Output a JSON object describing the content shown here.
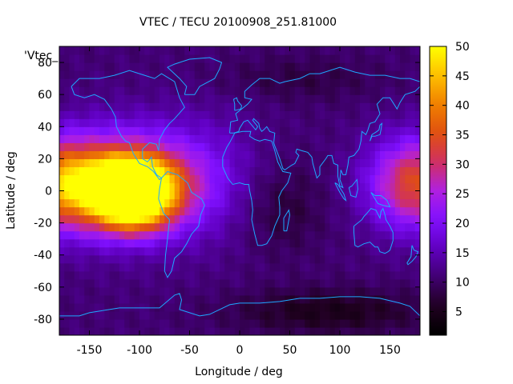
{
  "chart_data": {
    "type": "heatmap",
    "title": "VTEC / TECU 20100908_251.81000",
    "xlabel": "Longitude / deg",
    "ylabel": "Latitude / deg",
    "series_label": "'Vtec_",
    "xlim": [
      -180,
      180
    ],
    "ylim": [
      -90,
      90
    ],
    "x_ticks": [
      -150,
      -100,
      -50,
      0,
      50,
      100,
      150
    ],
    "y_ticks": [
      -80,
      -60,
      -40,
      -20,
      0,
      20,
      40,
      60,
      80
    ],
    "colorbar": {
      "range": [
        1,
        50
      ],
      "ticks": [
        5,
        10,
        15,
        20,
        25,
        30,
        35,
        40,
        45,
        50
      ],
      "palette": [
        "#000000",
        "#200020",
        "#400070",
        "#6000c0",
        "#8010ff",
        "#b020e0",
        "#d03060",
        "#e05010",
        "#f08000",
        "#ffc000",
        "#ffff00"
      ]
    },
    "grid_step_deg": [
      5,
      5
    ],
    "features": [
      {
        "lon": -110,
        "lat": 2,
        "value": 48,
        "sx": 28,
        "sy": 12
      },
      {
        "lon": -120,
        "lat": 5,
        "value": 28,
        "sx": 55,
        "sy": 22
      },
      {
        "lon": -105,
        "lat": -15,
        "value": 12,
        "sx": 25,
        "sy": 10
      },
      {
        "lon": 180,
        "lat": 5,
        "value": 24,
        "sx": 35,
        "sy": 20
      },
      {
        "lon": -180,
        "lat": 5,
        "value": 18,
        "sx": 25,
        "sy": 18
      },
      {
        "lon": -30,
        "lat": 10,
        "value": 4,
        "sx": 40,
        "sy": 30
      },
      {
        "lon": 40,
        "lat": -10,
        "value": -4,
        "sx": 30,
        "sy": 20
      },
      {
        "lon": 90,
        "lat": -75,
        "value": -6,
        "sx": 70,
        "sy": 10
      },
      {
        "lon": 60,
        "lat": 70,
        "value": -3,
        "sx": 60,
        "sy": 10
      }
    ],
    "base_value": 11,
    "landmass_outlines": {
      "north_america": [
        [
          -168,
          65
        ],
        [
          -160,
          70
        ],
        [
          -140,
          70
        ],
        [
          -125,
          72
        ],
        [
          -110,
          75
        ],
        [
          -95,
          72
        ],
        [
          -85,
          70
        ],
        [
          -78,
          73
        ],
        [
          -65,
          68
        ],
        [
          -60,
          58
        ],
        [
          -55,
          52
        ],
        [
          -65,
          45
        ],
        [
          -70,
          42
        ],
        [
          -75,
          38
        ],
        [
          -80,
          32
        ],
        [
          -81,
          25
        ],
        [
          -83,
          29
        ],
        [
          -90,
          30
        ],
        [
          -97,
          26
        ],
        [
          -97,
          20
        ],
        [
          -92,
          18
        ],
        [
          -88,
          21
        ],
        [
          -87,
          15
        ],
        [
          -83,
          10
        ],
        [
          -78,
          8
        ],
        [
          -80,
          7
        ],
        [
          -86,
          12
        ],
        [
          -92,
          15
        ],
        [
          -100,
          17
        ],
        [
          -106,
          23
        ],
        [
          -110,
          30
        ],
        [
          -114,
          31
        ],
        [
          -118,
          34
        ],
        [
          -123,
          40
        ],
        [
          -124,
          46
        ],
        [
          -128,
          51
        ],
        [
          -135,
          57
        ],
        [
          -145,
          60
        ],
        [
          -155,
          58
        ],
        [
          -165,
          60
        ],
        [
          -168,
          65
        ]
      ],
      "south_america": [
        [
          -78,
          8
        ],
        [
          -72,
          12
        ],
        [
          -62,
          10
        ],
        [
          -52,
          5
        ],
        [
          -48,
          -1
        ],
        [
          -38,
          -5
        ],
        [
          -35,
          -9
        ],
        [
          -39,
          -15
        ],
        [
          -41,
          -22
        ],
        [
          -48,
          -27
        ],
        [
          -53,
          -33
        ],
        [
          -58,
          -38
        ],
        [
          -65,
          -42
        ],
        [
          -68,
          -50
        ],
        [
          -72,
          -54
        ],
        [
          -75,
          -50
        ],
        [
          -74,
          -40
        ],
        [
          -72,
          -30
        ],
        [
          -70,
          -18
        ],
        [
          -76,
          -14
        ],
        [
          -81,
          -5
        ],
        [
          -80,
          1
        ],
        [
          -78,
          8
        ]
      ],
      "greenland": [
        [
          -55,
          60
        ],
        [
          -45,
          60
        ],
        [
          -40,
          65
        ],
        [
          -25,
          70
        ],
        [
          -20,
          76
        ],
        [
          -18,
          80
        ],
        [
          -30,
          83
        ],
        [
          -50,
          82
        ],
        [
          -65,
          79
        ],
        [
          -72,
          77
        ],
        [
          -60,
          70
        ],
        [
          -53,
          65
        ],
        [
          -55,
          60
        ]
      ],
      "europe_asia": [
        [
          -10,
          36
        ],
        [
          -9,
          43
        ],
        [
          -2,
          44
        ],
        [
          -4,
          48
        ],
        [
          2,
          51
        ],
        [
          8,
          54
        ],
        [
          12,
          57
        ],
        [
          5,
          58
        ],
        [
          5,
          62
        ],
        [
          12,
          66
        ],
        [
          20,
          70
        ],
        [
          30,
          70
        ],
        [
          40,
          67
        ],
        [
          45,
          68
        ],
        [
          60,
          70
        ],
        [
          70,
          73
        ],
        [
          80,
          73
        ],
        [
          100,
          77
        ],
        [
          115,
          74
        ],
        [
          130,
          72
        ],
        [
          145,
          72
        ],
        [
          160,
          70
        ],
        [
          170,
          70
        ],
        [
          180,
          68
        ],
        [
          180,
          65
        ],
        [
          175,
          62
        ],
        [
          165,
          60
        ],
        [
          160,
          55
        ],
        [
          157,
          51
        ],
        [
          150,
          58
        ],
        [
          143,
          58
        ],
        [
          137,
          54
        ],
        [
          140,
          48
        ],
        [
          135,
          43
        ],
        [
          130,
          42
        ],
        [
          128,
          38
        ],
        [
          126,
          35
        ],
        [
          122,
          37
        ],
        [
          121,
          31
        ],
        [
          119,
          26
        ],
        [
          114,
          22
        ],
        [
          109,
          21
        ],
        [
          108,
          16
        ],
        [
          106,
          10
        ],
        [
          103,
          10
        ],
        [
          101,
          13
        ],
        [
          100,
          7
        ],
        [
          103,
          2
        ],
        [
          100,
          3
        ],
        [
          98,
          9
        ],
        [
          98,
          16
        ],
        [
          94,
          17
        ],
        [
          92,
          22
        ],
        [
          88,
          22
        ],
        [
          86,
          20
        ],
        [
          80,
          15
        ],
        [
          80,
          10
        ],
        [
          77,
          8
        ],
        [
          73,
          17
        ],
        [
          72,
          21
        ],
        [
          68,
          24
        ],
        [
          62,
          25
        ],
        [
          57,
          26
        ],
        [
          56,
          24
        ],
        [
          59,
          22
        ],
        [
          55,
          17
        ],
        [
          52,
          16
        ],
        [
          45,
          13
        ],
        [
          43,
          14
        ],
        [
          40,
          20
        ],
        [
          35,
          28
        ],
        [
          34,
          30
        ],
        [
          35,
          36
        ],
        [
          30,
          37
        ],
        [
          27,
          40
        ],
        [
          24,
          38
        ],
        [
          22,
          37
        ],
        [
          20,
          39
        ],
        [
          19,
          42
        ],
        [
          14,
          45
        ],
        [
          13,
          44
        ],
        [
          18,
          40
        ],
        [
          16,
          38
        ],
        [
          12,
          41
        ],
        [
          8,
          44
        ],
        [
          4,
          43
        ],
        [
          0,
          39
        ],
        [
          -1,
          37
        ],
        [
          -6,
          36
        ],
        [
          -10,
          36
        ]
      ],
      "africa": [
        [
          -17,
          21
        ],
        [
          -17,
          15
        ],
        [
          -12,
          8
        ],
        [
          -7,
          4
        ],
        [
          0,
          5
        ],
        [
          5,
          4
        ],
        [
          9,
          4
        ],
        [
          10,
          0
        ],
        [
          12,
          -6
        ],
        [
          13,
          -12
        ],
        [
          12,
          -18
        ],
        [
          15,
          -27
        ],
        [
          18,
          -34
        ],
        [
          22,
          -34
        ],
        [
          27,
          -33
        ],
        [
          32,
          -28
        ],
        [
          35,
          -22
        ],
        [
          40,
          -15
        ],
        [
          40,
          -10
        ],
        [
          39,
          -4
        ],
        [
          42,
          0
        ],
        [
          48,
          5
        ],
        [
          51,
          11
        ],
        [
          43,
          12
        ],
        [
          38,
          18
        ],
        [
          35,
          25
        ],
        [
          32,
          31
        ],
        [
          25,
          32
        ],
        [
          20,
          31
        ],
        [
          15,
          32
        ],
        [
          10,
          34
        ],
        [
          11,
          37
        ],
        [
          3,
          37
        ],
        [
          -5,
          36
        ],
        [
          -10,
          30
        ],
        [
          -13,
          27
        ],
        [
          -17,
          21
        ]
      ],
      "australia": [
        [
          114,
          -22
        ],
        [
          114,
          -26
        ],
        [
          115,
          -34
        ],
        [
          118,
          -35
        ],
        [
          124,
          -33
        ],
        [
          130,
          -32
        ],
        [
          135,
          -35
        ],
        [
          138,
          -35
        ],
        [
          140,
          -38
        ],
        [
          145,
          -39
        ],
        [
          148,
          -38
        ],
        [
          150,
          -37
        ],
        [
          153,
          -31
        ],
        [
          153,
          -26
        ],
        [
          150,
          -22
        ],
        [
          146,
          -18
        ],
        [
          145,
          -15
        ],
        [
          143,
          -11
        ],
        [
          141,
          -13
        ],
        [
          140,
          -17
        ],
        [
          136,
          -12
        ],
        [
          131,
          -11
        ],
        [
          127,
          -14
        ],
        [
          124,
          -16
        ],
        [
          122,
          -18
        ],
        [
          114,
          -22
        ]
      ],
      "antarctica": [
        [
          -180,
          -78
        ],
        [
          -160,
          -78
        ],
        [
          -150,
          -76
        ],
        [
          -140,
          -75
        ],
        [
          -120,
          -73
        ],
        [
          -100,
          -73
        ],
        [
          -80,
          -73
        ],
        [
          -65,
          -65
        ],
        [
          -60,
          -64
        ],
        [
          -58,
          -68
        ],
        [
          -60,
          -74
        ],
        [
          -40,
          -78
        ],
        [
          -30,
          -77
        ],
        [
          -10,
          -71
        ],
        [
          0,
          -70
        ],
        [
          20,
          -70
        ],
        [
          40,
          -69
        ],
        [
          60,
          -67
        ],
        [
          80,
          -67
        ],
        [
          100,
          -66
        ],
        [
          120,
          -66
        ],
        [
          140,
          -67
        ],
        [
          160,
          -70
        ],
        [
          170,
          -72
        ],
        [
          180,
          -78
        ]
      ],
      "madagascar": [
        [
          44,
          -25
        ],
        [
          47,
          -25
        ],
        [
          50,
          -15
        ],
        [
          49,
          -12
        ],
        [
          44,
          -17
        ],
        [
          44,
          -25
        ]
      ],
      "uk": [
        [
          -5,
          50
        ],
        [
          1,
          51
        ],
        [
          2,
          53
        ],
        [
          -2,
          56
        ],
        [
          -3,
          58
        ],
        [
          -6,
          57
        ],
        [
          -5,
          54
        ],
        [
          -5,
          50
        ]
      ],
      "japan": [
        [
          130,
          31
        ],
        [
          132,
          34
        ],
        [
          135,
          34
        ],
        [
          140,
          35
        ],
        [
          141,
          38
        ],
        [
          142,
          42
        ],
        [
          140,
          41
        ],
        [
          139,
          38
        ],
        [
          137,
          37
        ],
        [
          132,
          35
        ],
        [
          130,
          31
        ]
      ],
      "new_zealand": [
        [
          172,
          -34
        ],
        [
          174,
          -37
        ],
        [
          178,
          -38
        ],
        [
          176,
          -41
        ],
        [
          172,
          -44
        ],
        [
          168,
          -46
        ],
        [
          167,
          -45
        ],
        [
          171,
          -41
        ],
        [
          172,
          -34
        ]
      ],
      "indonesia": [
        [
          95,
          5
        ],
        [
          98,
          4
        ],
        [
          104,
          -2
        ],
        [
          106,
          -6
        ],
        [
          104,
          -5
        ],
        [
          100,
          -1
        ],
        [
          95,
          5
        ]
      ],
      "borneo": [
        [
          109,
          2
        ],
        [
          111,
          -3
        ],
        [
          116,
          -4
        ],
        [
          118,
          1
        ],
        [
          117,
          7
        ],
        [
          112,
          3
        ],
        [
          109,
          2
        ]
      ],
      "new_guinea": [
        [
          131,
          -1
        ],
        [
          135,
          -3
        ],
        [
          141,
          -3
        ],
        [
          147,
          -6
        ],
        [
          150,
          -10
        ],
        [
          143,
          -9
        ],
        [
          138,
          -8
        ],
        [
          134,
          -4
        ],
        [
          131,
          -1
        ]
      ]
    }
  }
}
